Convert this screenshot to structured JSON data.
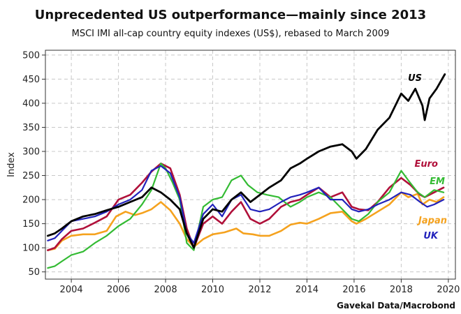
{
  "chart_data": {
    "type": "line",
    "title": "Unprecedented US outperformance—mainly since 2013",
    "subtitle": "MSCI IMI all-cap country equity indexes (US$), rebased to March 2009",
    "ylabel": "Index",
    "xlabel": "",
    "source": "Gavekal Data/Macrobond",
    "xlim": [
      2002.9,
      2020.3
    ],
    "ylim": [
      35,
      510
    ],
    "x_ticks": [
      2004,
      2006,
      2008,
      2010,
      2012,
      2014,
      2016,
      2018,
      2020
    ],
    "x_tick_labels": [
      "2004",
      "2006",
      "2008",
      "2010",
      "2012",
      "2014",
      "2016",
      "2018",
      "2020"
    ],
    "y_ticks": [
      50,
      100,
      150,
      200,
      250,
      300,
      350,
      400,
      450,
      500
    ],
    "y_tick_labels": [
      "50",
      "100",
      "150",
      "200",
      "250",
      "300",
      "350",
      "400",
      "450",
      "500"
    ],
    "grid": true,
    "series": [
      {
        "name": "Japan",
        "color": "#f5a21e",
        "x": [
          2003.0,
          2003.3,
          2003.6,
          2004.0,
          2004.5,
          2005.0,
          2005.5,
          2005.9,
          2006.3,
          2006.7,
          2007.0,
          2007.4,
          2007.8,
          2008.2,
          2008.6,
          2008.9,
          2009.2,
          2009.6,
          2010.0,
          2010.5,
          2011.0,
          2011.3,
          2011.7,
          2012.0,
          2012.4,
          2012.9,
          2013.3,
          2013.7,
          2014.0,
          2014.5,
          2015.0,
          2015.5,
          2015.9,
          2016.1,
          2016.5,
          2017.0,
          2017.5,
          2018.0,
          2018.3,
          2018.7,
          2018.9,
          2019.2,
          2019.5,
          2019.8
        ],
        "y": [
          95,
          98,
          115,
          125,
          128,
          128,
          135,
          165,
          175,
          168,
          172,
          180,
          195,
          178,
          150,
          118,
          102,
          118,
          128,
          132,
          140,
          130,
          128,
          125,
          125,
          135,
          148,
          152,
          150,
          160,
          172,
          175,
          155,
          150,
          160,
          175,
          190,
          215,
          205,
          212,
          190,
          200,
          195,
          205
        ]
      },
      {
        "name": "Euro",
        "color": "#b0103a",
        "x": [
          2003.0,
          2003.3,
          2003.6,
          2004.0,
          2004.5,
          2005.0,
          2005.5,
          2006.0,
          2006.5,
          2007.0,
          2007.4,
          2007.8,
          2008.2,
          2008.6,
          2008.9,
          2009.2,
          2009.6,
          2010.0,
          2010.4,
          2010.8,
          2011.2,
          2011.6,
          2012.0,
          2012.4,
          2012.9,
          2013.3,
          2013.7,
          2014.0,
          2014.5,
          2015.0,
          2015.5,
          2015.9,
          2016.2,
          2016.6,
          2017.0,
          2017.5,
          2018.0,
          2018.4,
          2018.8,
          2019.0,
          2019.4,
          2019.8
        ],
        "y": [
          95,
          100,
          118,
          135,
          140,
          152,
          165,
          200,
          210,
          235,
          258,
          275,
          265,
          210,
          140,
          100,
          150,
          165,
          150,
          175,
          195,
          160,
          150,
          160,
          185,
          195,
          200,
          210,
          225,
          205,
          215,
          185,
          180,
          178,
          195,
          225,
          245,
          230,
          210,
          205,
          215,
          225
        ]
      },
      {
        "name": "EM",
        "color": "#33bb33",
        "x": [
          2003.0,
          2003.3,
          2003.6,
          2004.0,
          2004.5,
          2005.0,
          2005.5,
          2006.0,
          2006.5,
          2007.0,
          2007.4,
          2007.8,
          2008.0,
          2008.3,
          2008.6,
          2008.9,
          2009.2,
          2009.6,
          2010.0,
          2010.4,
          2010.8,
          2011.2,
          2011.5,
          2011.9,
          2012.3,
          2012.8,
          2013.3,
          2013.7,
          2014.0,
          2014.5,
          2015.0,
          2015.5,
          2015.9,
          2016.2,
          2016.6,
          2017.0,
          2017.5,
          2018.0,
          2018.3,
          2018.7,
          2019.0,
          2019.4,
          2019.8
        ],
        "y": [
          58,
          62,
          72,
          85,
          92,
          110,
          125,
          145,
          160,
          190,
          220,
          275,
          265,
          235,
          200,
          110,
          95,
          185,
          200,
          205,
          240,
          250,
          230,
          215,
          210,
          205,
          185,
          195,
          205,
          215,
          205,
          180,
          160,
          155,
          170,
          195,
          215,
          260,
          240,
          215,
          205,
          220,
          215
        ]
      },
      {
        "name": "UK",
        "color": "#2222bb",
        "x": [
          2003.0,
          2003.3,
          2003.6,
          2004.0,
          2004.5,
          2005.0,
          2005.5,
          2006.0,
          2006.5,
          2007.0,
          2007.4,
          2007.8,
          2008.2,
          2008.6,
          2008.9,
          2009.2,
          2009.6,
          2010.0,
          2010.4,
          2010.8,
          2011.2,
          2011.6,
          2012.0,
          2012.4,
          2012.9,
          2013.3,
          2013.7,
          2014.0,
          2014.5,
          2015.0,
          2015.5,
          2015.9,
          2016.2,
          2016.6,
          2017.0,
          2017.5,
          2018.0,
          2018.4,
          2018.8,
          2019.1,
          2019.4,
          2019.8
        ],
        "y": [
          115,
          120,
          135,
          155,
          160,
          165,
          175,
          190,
          200,
          220,
          260,
          270,
          255,
          205,
          130,
          110,
          170,
          190,
          165,
          200,
          210,
          180,
          175,
          180,
          195,
          205,
          210,
          215,
          225,
          200,
          200,
          180,
          175,
          180,
          190,
          200,
          215,
          210,
          195,
          185,
          190,
          200
        ]
      },
      {
        "name": "US",
        "color": "#000000",
        "x": [
          2003.0,
          2003.3,
          2003.6,
          2004.0,
          2004.5,
          2005.0,
          2005.5,
          2006.0,
          2006.5,
          2007.0,
          2007.4,
          2007.8,
          2008.2,
          2008.6,
          2008.9,
          2009.2,
          2009.6,
          2010.0,
          2010.4,
          2010.8,
          2011.2,
          2011.6,
          2012.0,
          2012.4,
          2012.9,
          2013.3,
          2013.7,
          2014.0,
          2014.5,
          2015.0,
          2015.5,
          2015.9,
          2016.1,
          2016.5,
          2017.0,
          2017.5,
          2018.0,
          2018.3,
          2018.6,
          2018.9,
          2019.0,
          2019.2,
          2019.5,
          2019.85
        ],
        "y": [
          125,
          130,
          140,
          155,
          165,
          170,
          178,
          185,
          195,
          205,
          225,
          215,
          200,
          180,
          130,
          100,
          160,
          180,
          175,
          200,
          215,
          195,
          210,
          225,
          240,
          265,
          275,
          285,
          300,
          310,
          315,
          300,
          285,
          305,
          345,
          370,
          420,
          405,
          430,
          395,
          365,
          410,
          430,
          460
        ]
      }
    ],
    "annotations": [
      {
        "text": "US",
        "series": "US"
      },
      {
        "text": "Euro",
        "series": "Euro"
      },
      {
        "text": "EM",
        "series": "EM"
      },
      {
        "text": "Japan",
        "series": "Japan"
      },
      {
        "text": "UK",
        "series": "UK"
      }
    ]
  }
}
